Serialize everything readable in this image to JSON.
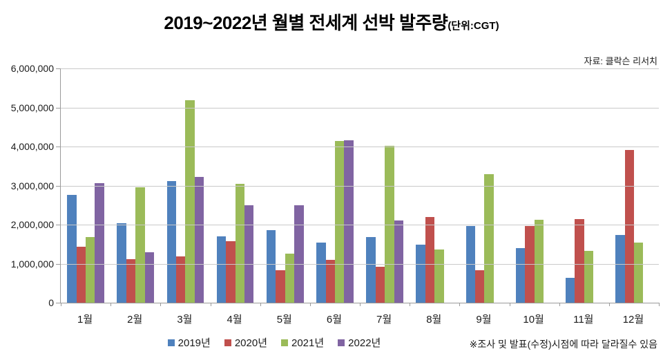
{
  "title": {
    "main": "2019~2022년 월별 전세계 선박 발주량",
    "unit": "(단위:CGT)"
  },
  "source": "자료: 클락슨 리서치",
  "footnote": "※조사 및 발표(수정)시점에 따라 달라질수 있음",
  "chart_data": {
    "type": "bar",
    "title": "2019~2022년 월별 전세계 선박 발주량(단위:CGT)",
    "xlabel": "",
    "ylabel": "",
    "ylim": [
      0,
      6000000
    ],
    "ytick_step": 1000000,
    "ytick_labels": [
      "0",
      "1,000,000",
      "2,000,000",
      "3,000,000",
      "4,000,000",
      "5,000,000",
      "6,000,000"
    ],
    "grid": true,
    "grid_color": "#c9c9c9",
    "axis_color": "#9a9a9a",
    "legend_position": "bottom",
    "categories": [
      "1월",
      "2월",
      "3월",
      "4월",
      "5월",
      "6월",
      "7월",
      "8월",
      "9월",
      "10월",
      "11월",
      "12월"
    ],
    "series": [
      {
        "name": "2019년",
        "color": "#4F81BD",
        "values": [
          2770000,
          2040000,
          3110000,
          1700000,
          1860000,
          1540000,
          1680000,
          1480000,
          1970000,
          1390000,
          630000,
          1740000
        ]
      },
      {
        "name": "2020년",
        "color": "#C0504D",
        "values": [
          1430000,
          1110000,
          1190000,
          1570000,
          830000,
          1090000,
          920000,
          2200000,
          830000,
          1970000,
          2150000,
          3910000
        ]
      },
      {
        "name": "2021년",
        "color": "#9BBB59",
        "values": [
          1690000,
          2950000,
          5190000,
          3050000,
          1260000,
          4140000,
          4010000,
          1370000,
          3290000,
          2130000,
          1320000,
          1540000
        ]
      },
      {
        "name": "2022년",
        "color": "#8064A2",
        "values": [
          3070000,
          1300000,
          3220000,
          2500000,
          2500000,
          4160000,
          2100000,
          null,
          null,
          null,
          null,
          null
        ]
      }
    ]
  }
}
